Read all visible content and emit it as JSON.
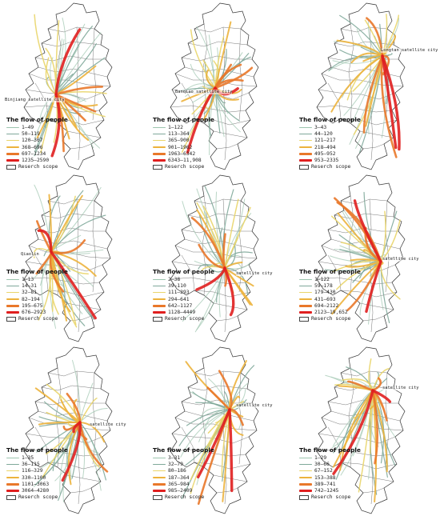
{
  "legend_title": "The flow of people",
  "scope_label": "Reserch scope",
  "class_colors": [
    "#9cc5ae",
    "#7fa89a",
    "#e9d56a",
    "#ecb33c",
    "#e9782a",
    "#e01f1f"
  ],
  "panels": [
    {
      "city_label": "Binjiang satellite city",
      "classes": [
        "1—49",
        "50—119",
        "120—367",
        "368—696",
        "697—1234",
        "1235—2590"
      ]
    },
    {
      "city_label": "Banqiao satellite city",
      "classes": [
        "1—122",
        "113—364",
        "365—900",
        "901—1962",
        "1963—6342",
        "6343—11,908"
      ]
    },
    {
      "city_label": "Longtan satellite city",
      "classes": [
        "3—43",
        "44—120",
        "121—217",
        "218—494",
        "495—952",
        "953—2335"
      ]
    },
    {
      "city_label": "Qiaolin",
      "classes": [
        "1—13",
        "14—31",
        "32—81",
        "82—194",
        "195—675",
        "676—2923"
      ]
    },
    {
      "city_label": "satellite city",
      "classes": [
        "2—38",
        "39—110",
        "111—293",
        "294—641",
        "642—1127",
        "1128—4449"
      ]
    },
    {
      "city_label": "satellite city",
      "classes": [
        "1—122",
        "59—178",
        "179—430",
        "431—693",
        "694—2122",
        "2123—19,652"
      ]
    },
    {
      "city_label": "satellite city",
      "classes": [
        "1—35",
        "36—115",
        "116—329",
        "330—1100",
        "1101—3063",
        "3064—4280"
      ]
    },
    {
      "city_label": "satellite city",
      "classes": [
        "3—31",
        "32—79",
        "80—186",
        "187—364",
        "365—984",
        "985—2409"
      ]
    },
    {
      "city_label": "satellite city",
      "classes": [
        "1—29",
        "30—66",
        "67—152",
        "153—388",
        "389—741",
        "742—1245"
      ]
    }
  ]
}
